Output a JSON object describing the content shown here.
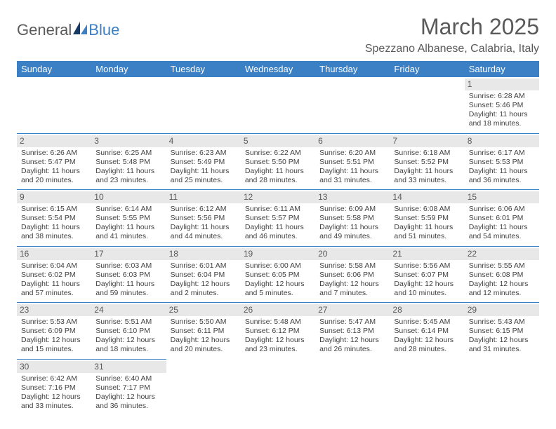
{
  "logo": {
    "part1": "General",
    "part2": "Blue"
  },
  "title": "March 2025",
  "location": "Spezzano Albanese, Calabria, Italy",
  "colors": {
    "header_bg": "#3b7fc4",
    "header_text": "#ffffff",
    "daynum_bg": "#e8e8e8",
    "text": "#5a5a5a",
    "cell_text": "#424242",
    "border": "#3b7fc4"
  },
  "typography": {
    "title_fontsize": 32,
    "location_fontsize": 16,
    "dayheader_fontsize": 13,
    "cell_fontsize": 10.5
  },
  "day_headers": [
    "Sunday",
    "Monday",
    "Tuesday",
    "Wednesday",
    "Thursday",
    "Friday",
    "Saturday"
  ],
  "weeks": [
    [
      null,
      null,
      null,
      null,
      null,
      null,
      {
        "n": "1",
        "sunrise": "Sunrise: 6:28 AM",
        "sunset": "Sunset: 5:46 PM",
        "daylight": "Daylight: 11 hours and 18 minutes."
      }
    ],
    [
      {
        "n": "2",
        "sunrise": "Sunrise: 6:26 AM",
        "sunset": "Sunset: 5:47 PM",
        "daylight": "Daylight: 11 hours and 20 minutes."
      },
      {
        "n": "3",
        "sunrise": "Sunrise: 6:25 AM",
        "sunset": "Sunset: 5:48 PM",
        "daylight": "Daylight: 11 hours and 23 minutes."
      },
      {
        "n": "4",
        "sunrise": "Sunrise: 6:23 AM",
        "sunset": "Sunset: 5:49 PM",
        "daylight": "Daylight: 11 hours and 25 minutes."
      },
      {
        "n": "5",
        "sunrise": "Sunrise: 6:22 AM",
        "sunset": "Sunset: 5:50 PM",
        "daylight": "Daylight: 11 hours and 28 minutes."
      },
      {
        "n": "6",
        "sunrise": "Sunrise: 6:20 AM",
        "sunset": "Sunset: 5:51 PM",
        "daylight": "Daylight: 11 hours and 31 minutes."
      },
      {
        "n": "7",
        "sunrise": "Sunrise: 6:18 AM",
        "sunset": "Sunset: 5:52 PM",
        "daylight": "Daylight: 11 hours and 33 minutes."
      },
      {
        "n": "8",
        "sunrise": "Sunrise: 6:17 AM",
        "sunset": "Sunset: 5:53 PM",
        "daylight": "Daylight: 11 hours and 36 minutes."
      }
    ],
    [
      {
        "n": "9",
        "sunrise": "Sunrise: 6:15 AM",
        "sunset": "Sunset: 5:54 PM",
        "daylight": "Daylight: 11 hours and 38 minutes."
      },
      {
        "n": "10",
        "sunrise": "Sunrise: 6:14 AM",
        "sunset": "Sunset: 5:55 PM",
        "daylight": "Daylight: 11 hours and 41 minutes."
      },
      {
        "n": "11",
        "sunrise": "Sunrise: 6:12 AM",
        "sunset": "Sunset: 5:56 PM",
        "daylight": "Daylight: 11 hours and 44 minutes."
      },
      {
        "n": "12",
        "sunrise": "Sunrise: 6:11 AM",
        "sunset": "Sunset: 5:57 PM",
        "daylight": "Daylight: 11 hours and 46 minutes."
      },
      {
        "n": "13",
        "sunrise": "Sunrise: 6:09 AM",
        "sunset": "Sunset: 5:58 PM",
        "daylight": "Daylight: 11 hours and 49 minutes."
      },
      {
        "n": "14",
        "sunrise": "Sunrise: 6:08 AM",
        "sunset": "Sunset: 5:59 PM",
        "daylight": "Daylight: 11 hours and 51 minutes."
      },
      {
        "n": "15",
        "sunrise": "Sunrise: 6:06 AM",
        "sunset": "Sunset: 6:01 PM",
        "daylight": "Daylight: 11 hours and 54 minutes."
      }
    ],
    [
      {
        "n": "16",
        "sunrise": "Sunrise: 6:04 AM",
        "sunset": "Sunset: 6:02 PM",
        "daylight": "Daylight: 11 hours and 57 minutes."
      },
      {
        "n": "17",
        "sunrise": "Sunrise: 6:03 AM",
        "sunset": "Sunset: 6:03 PM",
        "daylight": "Daylight: 11 hours and 59 minutes."
      },
      {
        "n": "18",
        "sunrise": "Sunrise: 6:01 AM",
        "sunset": "Sunset: 6:04 PM",
        "daylight": "Daylight: 12 hours and 2 minutes."
      },
      {
        "n": "19",
        "sunrise": "Sunrise: 6:00 AM",
        "sunset": "Sunset: 6:05 PM",
        "daylight": "Daylight: 12 hours and 5 minutes."
      },
      {
        "n": "20",
        "sunrise": "Sunrise: 5:58 AM",
        "sunset": "Sunset: 6:06 PM",
        "daylight": "Daylight: 12 hours and 7 minutes."
      },
      {
        "n": "21",
        "sunrise": "Sunrise: 5:56 AM",
        "sunset": "Sunset: 6:07 PM",
        "daylight": "Daylight: 12 hours and 10 minutes."
      },
      {
        "n": "22",
        "sunrise": "Sunrise: 5:55 AM",
        "sunset": "Sunset: 6:08 PM",
        "daylight": "Daylight: 12 hours and 12 minutes."
      }
    ],
    [
      {
        "n": "23",
        "sunrise": "Sunrise: 5:53 AM",
        "sunset": "Sunset: 6:09 PM",
        "daylight": "Daylight: 12 hours and 15 minutes."
      },
      {
        "n": "24",
        "sunrise": "Sunrise: 5:51 AM",
        "sunset": "Sunset: 6:10 PM",
        "daylight": "Daylight: 12 hours and 18 minutes."
      },
      {
        "n": "25",
        "sunrise": "Sunrise: 5:50 AM",
        "sunset": "Sunset: 6:11 PM",
        "daylight": "Daylight: 12 hours and 20 minutes."
      },
      {
        "n": "26",
        "sunrise": "Sunrise: 5:48 AM",
        "sunset": "Sunset: 6:12 PM",
        "daylight": "Daylight: 12 hours and 23 minutes."
      },
      {
        "n": "27",
        "sunrise": "Sunrise: 5:47 AM",
        "sunset": "Sunset: 6:13 PM",
        "daylight": "Daylight: 12 hours and 26 minutes."
      },
      {
        "n": "28",
        "sunrise": "Sunrise: 5:45 AM",
        "sunset": "Sunset: 6:14 PM",
        "daylight": "Daylight: 12 hours and 28 minutes."
      },
      {
        "n": "29",
        "sunrise": "Sunrise: 5:43 AM",
        "sunset": "Sunset: 6:15 PM",
        "daylight": "Daylight: 12 hours and 31 minutes."
      }
    ],
    [
      {
        "n": "30",
        "sunrise": "Sunrise: 6:42 AM",
        "sunset": "Sunset: 7:16 PM",
        "daylight": "Daylight: 12 hours and 33 minutes."
      },
      {
        "n": "31",
        "sunrise": "Sunrise: 6:40 AM",
        "sunset": "Sunset: 7:17 PM",
        "daylight": "Daylight: 12 hours and 36 minutes."
      },
      null,
      null,
      null,
      null,
      null
    ]
  ]
}
